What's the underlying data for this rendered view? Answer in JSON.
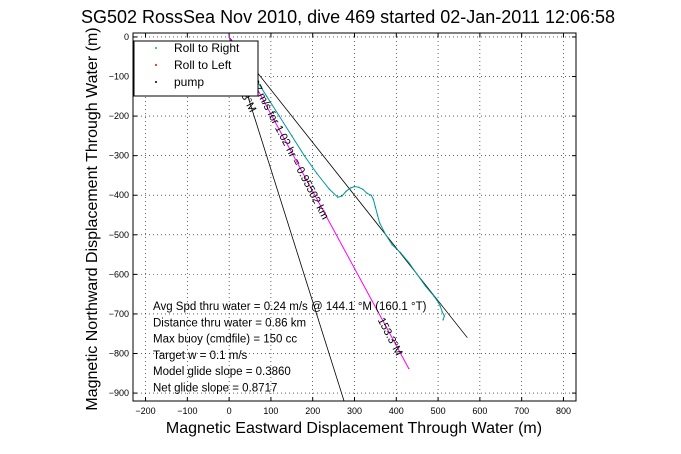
{
  "chart_data": {
    "type": "line",
    "title": "SG502 RossSea Nov 2010, dive 469 started 02-Jan-2011 12:06:58",
    "xlabel": "Magnetic Eastward Displacement Through Water (m)",
    "ylabel": "Magnetic Northward Displacement Through Water (m)",
    "xlim": [
      -230,
      830
    ],
    "ylim": [
      -920,
      10
    ],
    "grid": true,
    "xticks": [
      -200,
      -100,
      0,
      100,
      200,
      300,
      400,
      500,
      600,
      700,
      800
    ],
    "yticks": [
      0,
      -100,
      -200,
      -300,
      -400,
      -500,
      -600,
      -700,
      -800,
      -900
    ],
    "legend": {
      "placement": "top-left",
      "entries": [
        {
          "label": "Roll to Right",
          "color": "#00cc00"
        },
        {
          "label": "Roll to Left",
          "color": "#ff0000"
        },
        {
          "label": "pump",
          "color": "#000000"
        }
      ]
    },
    "series": [
      {
        "color": "#009999",
        "x": [
          5,
          30,
          60,
          90,
          120,
          150,
          180,
          210,
          240,
          260,
          270,
          280,
          290,
          300,
          310,
          320,
          330,
          340,
          345,
          350,
          355,
          360,
          375,
          390,
          410,
          430,
          450,
          470,
          490,
          500,
          505,
          510,
          515,
          512
        ],
        "y": [
          -10,
          -50,
          -100,
          -150,
          -200,
          -250,
          -300,
          -345,
          -385,
          -405,
          -402,
          -390,
          -382,
          -378,
          -380,
          -385,
          -395,
          -400,
          -410,
          -430,
          -450,
          -470,
          -500,
          -525,
          -545,
          -570,
          -600,
          -630,
          -655,
          -670,
          -680,
          -695,
          -705,
          -715
        ]
      },
      {
        "color": "#ff00ff",
        "x": [
          0,
          430
        ],
        "y": [
          0,
          -838
        ]
      }
    ],
    "reference_lines": [
      {
        "x": [
          0,
          570
        ],
        "y": [
          0,
          -760
        ],
        "color": "#000000"
      },
      {
        "x": [
          0,
          275
        ],
        "y": [
          0,
          -920
        ],
        "color": "#000000"
      }
    ],
    "annotations": [
      {
        "text": "0.2597 m/s for 1.02 hr = 0.95502 km",
        "x": 28,
        "y": -65,
        "angle": 62.5
      },
      {
        "text": "153.3°M",
        "x": 355,
        "y": -715,
        "angle": 62.5
      },
      {
        "text": "153.3°M",
        "x": 5,
        "y": -100,
        "angle": 62.5
      }
    ],
    "info_lines": [
      "Avg Spd thru water =  0.24 m/s @ 144.1    °M (160.1 °T)",
      "Distance thru water =  0.86 km",
      "Max buoy (cmdfile) = 150 cc",
      "Target w = 0.1 m/s",
      "Model glide slope = 0.3860",
      "Net glide slope = 0.8717"
    ]
  }
}
